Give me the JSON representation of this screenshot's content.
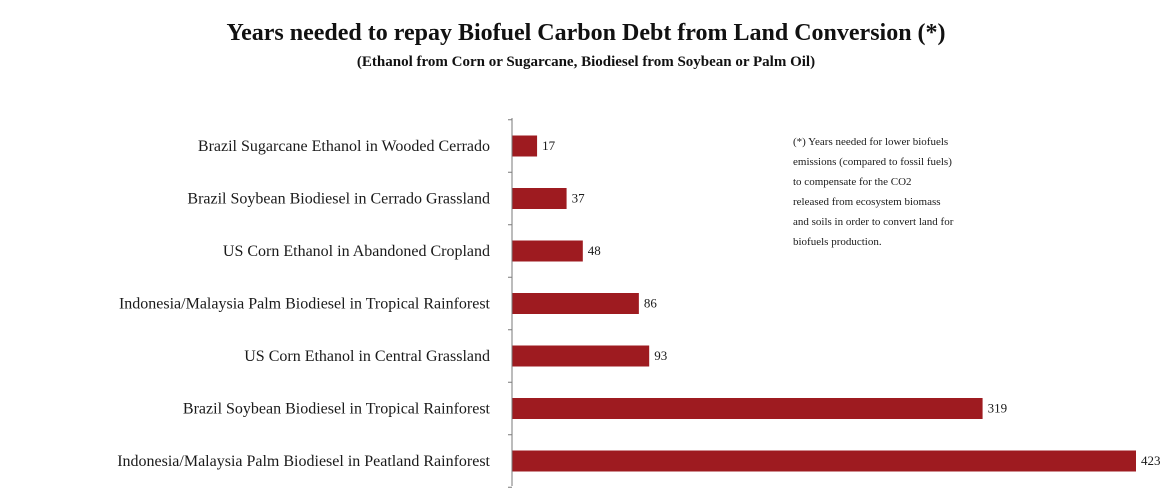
{
  "chart_data": {
    "type": "bar",
    "orientation": "horizontal",
    "title": "Years needed to repay Biofuel Carbon Debt from Land Conversion (*)",
    "subtitle": "(Ethanol from Corn or Sugarcane, Biodiesel from Soybean or Palm Oil)",
    "categories": [
      "Brazil Sugarcane Ethanol in Wooded Cerrado",
      "Brazil Soybean Biodiesel in Cerrado Grassland",
      "US Corn Ethanol in Abandoned Cropland",
      "Indonesia/Malaysia Palm Biodiesel in Tropical Rainforest",
      "US Corn Ethanol in Central Grassland",
      "Brazil Soybean Biodiesel in Tropical Rainforest",
      "Indonesia/Malaysia Palm Biodiesel in Peatland Rainforest"
    ],
    "values": [
      17,
      37,
      48,
      86,
      93,
      319,
      423
    ],
    "data_labels": [
      "17",
      "37",
      "48",
      "86",
      "93",
      "319",
      "423"
    ],
    "xlim": [
      0,
      423
    ],
    "grid": false,
    "bar_color": "#9e1b20",
    "footnote": [
      "(*) Years needed for lower biofuels",
      "emissions (compared to fossil fuels)",
      "to compensate for the CO2",
      "released from ecosystem biomass",
      "and soils in order to convert land for",
      "biofuels production."
    ]
  }
}
